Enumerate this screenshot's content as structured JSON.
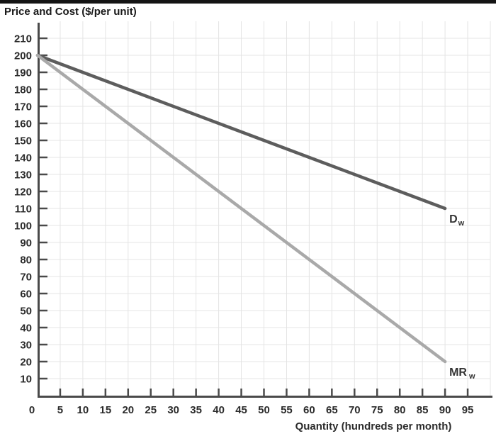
{
  "page": {
    "title": "Price and Cost ($/per unit)"
  },
  "chart_data": {
    "type": "line",
    "title": "Price and Cost ($/per unit)",
    "xlabel": "Quantity (hundreds per month)",
    "ylabel": "Price and Cost ($/per unit)",
    "xlim": [
      0,
      100
    ],
    "ylim": [
      0,
      220
    ],
    "grid": true,
    "x_ticks": [
      0,
      5,
      10,
      15,
      20,
      25,
      30,
      35,
      40,
      45,
      50,
      55,
      60,
      65,
      70,
      75,
      80,
      85,
      90,
      95
    ],
    "y_ticks": [
      10,
      20,
      30,
      40,
      50,
      60,
      70,
      80,
      90,
      100,
      110,
      120,
      130,
      140,
      150,
      160,
      170,
      180,
      190,
      200,
      210
    ],
    "x_grid_step": 5,
    "y_grid_step": 10,
    "series": [
      {
        "name": "demand-curve",
        "label": "D",
        "label_sub": "w",
        "color": "#5d5d5d",
        "points": [
          [
            0,
            200
          ],
          [
            90,
            110
          ]
        ]
      },
      {
        "name": "mr-curve",
        "label": "MR",
        "label_sub": "w",
        "color": "#a9a9a9",
        "points": [
          [
            0,
            200
          ],
          [
            90,
            20
          ]
        ]
      }
    ],
    "colors": {
      "axis": "#4a4a4a",
      "grid": "#e4e4e4",
      "text": "#2b2b2b",
      "top_border": "#141414"
    }
  }
}
